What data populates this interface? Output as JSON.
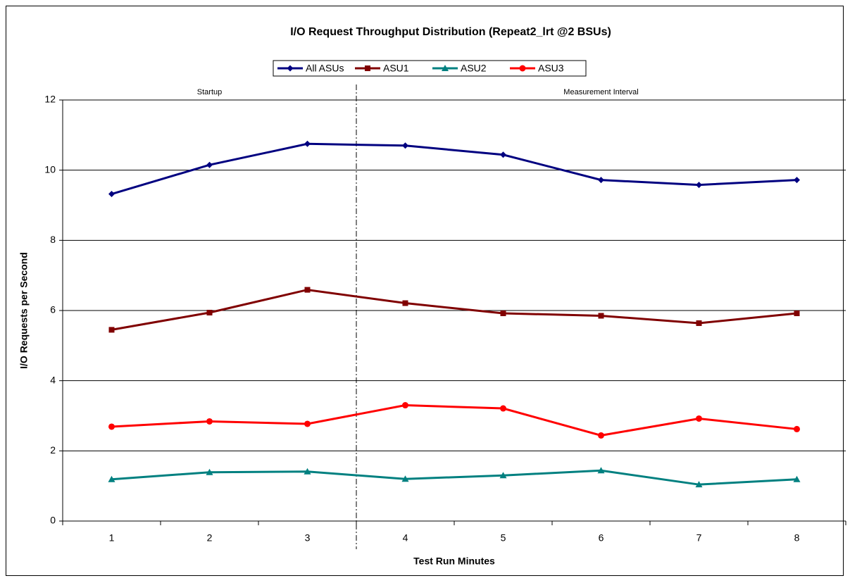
{
  "chart_data": {
    "type": "line",
    "title": "I/O Request Throughput Distribution (Repeat2_lrt @2 BSUs)",
    "xlabel": "Test Run Minutes",
    "ylabel": "I/O Requests per Second",
    "annotations": [
      "Startup",
      "Measurement Interval"
    ],
    "categories": [
      "1",
      "2",
      "3",
      "4",
      "5",
      "6",
      "7",
      "8"
    ],
    "series": [
      {
        "name": "All ASUs",
        "color": "#000080",
        "marker": "diamond",
        "values": [
          9.32,
          10.15,
          10.75,
          10.7,
          10.44,
          9.72,
          9.58,
          9.72
        ]
      },
      {
        "name": "ASU1",
        "color": "#800000",
        "marker": "square",
        "values": [
          5.45,
          5.94,
          6.59,
          6.21,
          5.92,
          5.85,
          5.64,
          5.92
        ]
      },
      {
        "name": "ASU2",
        "color": "#008080",
        "marker": "triangle",
        "values": [
          1.19,
          1.39,
          1.41,
          1.2,
          1.3,
          1.44,
          1.04,
          1.19
        ]
      },
      {
        "name": "ASU3",
        "color": "#ff0000",
        "marker": "circle",
        "values": [
          2.69,
          2.84,
          2.77,
          3.3,
          3.21,
          2.44,
          2.92,
          2.62
        ]
      }
    ],
    "ylim": [
      0,
      12
    ],
    "yticks": [
      0,
      2,
      4,
      6,
      8,
      10,
      12
    ],
    "grid": true,
    "legend": "top"
  }
}
